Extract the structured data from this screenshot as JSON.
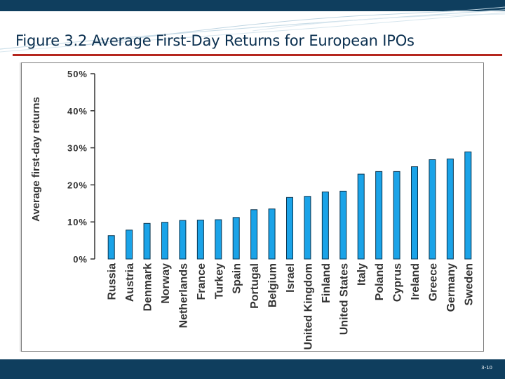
{
  "slide": {
    "title": "Figure 3.2 Average First-Day Returns for European IPOs",
    "number": "3-10"
  },
  "colors": {
    "band": "#0f3e5e",
    "title_text": "#0a2f4f",
    "rule": "#b5261e",
    "bar_fill": "#1aa3e8",
    "bar_stroke": "#0a3550",
    "axis": "#333333"
  },
  "chart_data": {
    "type": "bar",
    "title": "",
    "xlabel": "",
    "ylabel": "Average first-day returns",
    "ylim": [
      0,
      50
    ],
    "yticks": [
      0,
      10,
      20,
      30,
      40,
      50
    ],
    "ytick_labels": [
      "0%",
      "10%",
      "20%",
      "30%",
      "40%",
      "50%"
    ],
    "grid": false,
    "categories": [
      "Russia",
      "Austria",
      "Denmark",
      "Norway",
      "Netherlands",
      "France",
      "Turkey",
      "Spain",
      "Portugal",
      "Belgium",
      "Israel",
      "United Kingdom",
      "Finland",
      "United States",
      "Italy",
      "Poland",
      "Cyprus",
      "Ireland",
      "Greece",
      "Germany",
      "Sweden"
    ],
    "values": [
      6.3,
      7.8,
      9.6,
      9.9,
      10.4,
      10.5,
      10.6,
      11.2,
      13.3,
      13.5,
      16.6,
      16.9,
      18.1,
      18.3,
      22.9,
      23.6,
      23.6,
      24.9,
      26.8,
      27.0,
      28.9
    ]
  }
}
